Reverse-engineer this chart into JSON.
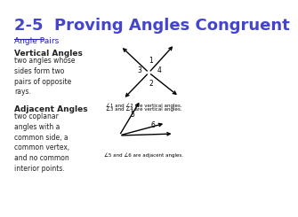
{
  "title": "2-5  Proving Angles Congruent",
  "title_color": "#4444cc",
  "title_fontsize": 13,
  "bg_color": "#ffffff",
  "section_header": "Angle Pairs",
  "section_header_color": "#2222aa",
  "text_color": "#222222",
  "font_family": "Comic Sans MS",
  "vertical_angles_title": "Vertical Angles",
  "vertical_angles_body": "two angles whose\nsides form two\npairs of opposite\nrays.",
  "adjacent_angles_title": "Adjacent Angles",
  "adjacent_angles_body": "two coplanar\nangles with a\ncommon side, a\ncommon vertex,\nand no common\ninterior points.",
  "vertical_caption1": "∠1 and ∠2 are vertical angles.",
  "vertical_caption2": "∠3 and ∠4 are vertical angles.",
  "adjacent_caption": "∠5 and ∠6 are adjacent angles."
}
